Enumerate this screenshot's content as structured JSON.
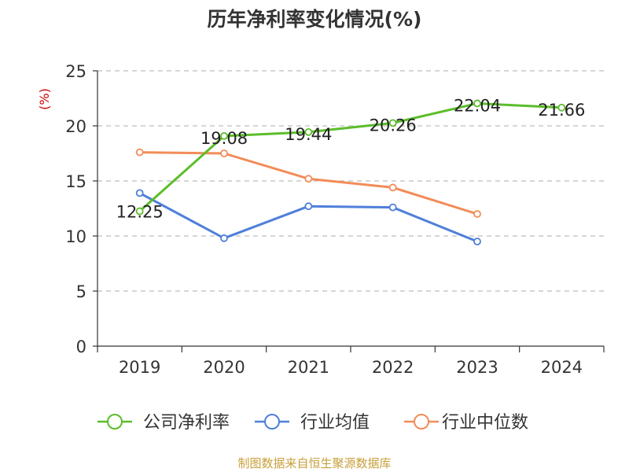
{
  "chart_data": {
    "type": "line",
    "title": "历年净利率变化情况(%)",
    "y_unit": "(%)",
    "categories": [
      "2019",
      "2020",
      "2021",
      "2022",
      "2023",
      "2024"
    ],
    "ylim": [
      0,
      25
    ],
    "y_ticks": [
      "0",
      "5",
      "10",
      "15",
      "20",
      "25"
    ],
    "grid": "horizontal-dashed",
    "legend_position": "bottom",
    "series": [
      {
        "name": "公司净利率",
        "color": "#5cbd2a",
        "values": [
          12.25,
          19.08,
          19.44,
          20.26,
          22.04,
          21.66
        ],
        "labels": [
          "12.25",
          "19.08",
          "19.44",
          "20.26",
          "22.04",
          "21.66"
        ]
      },
      {
        "name": "行业均值",
        "color": "#4f7fdb",
        "values": [
          13.9,
          9.8,
          12.7,
          12.6,
          9.5,
          null
        ]
      },
      {
        "name": "行业中位数",
        "color": "#f28c58",
        "values": [
          17.6,
          17.5,
          15.2,
          14.4,
          12.0,
          null
        ]
      }
    ],
    "source": "制图数据来自恒生聚源数据库"
  }
}
